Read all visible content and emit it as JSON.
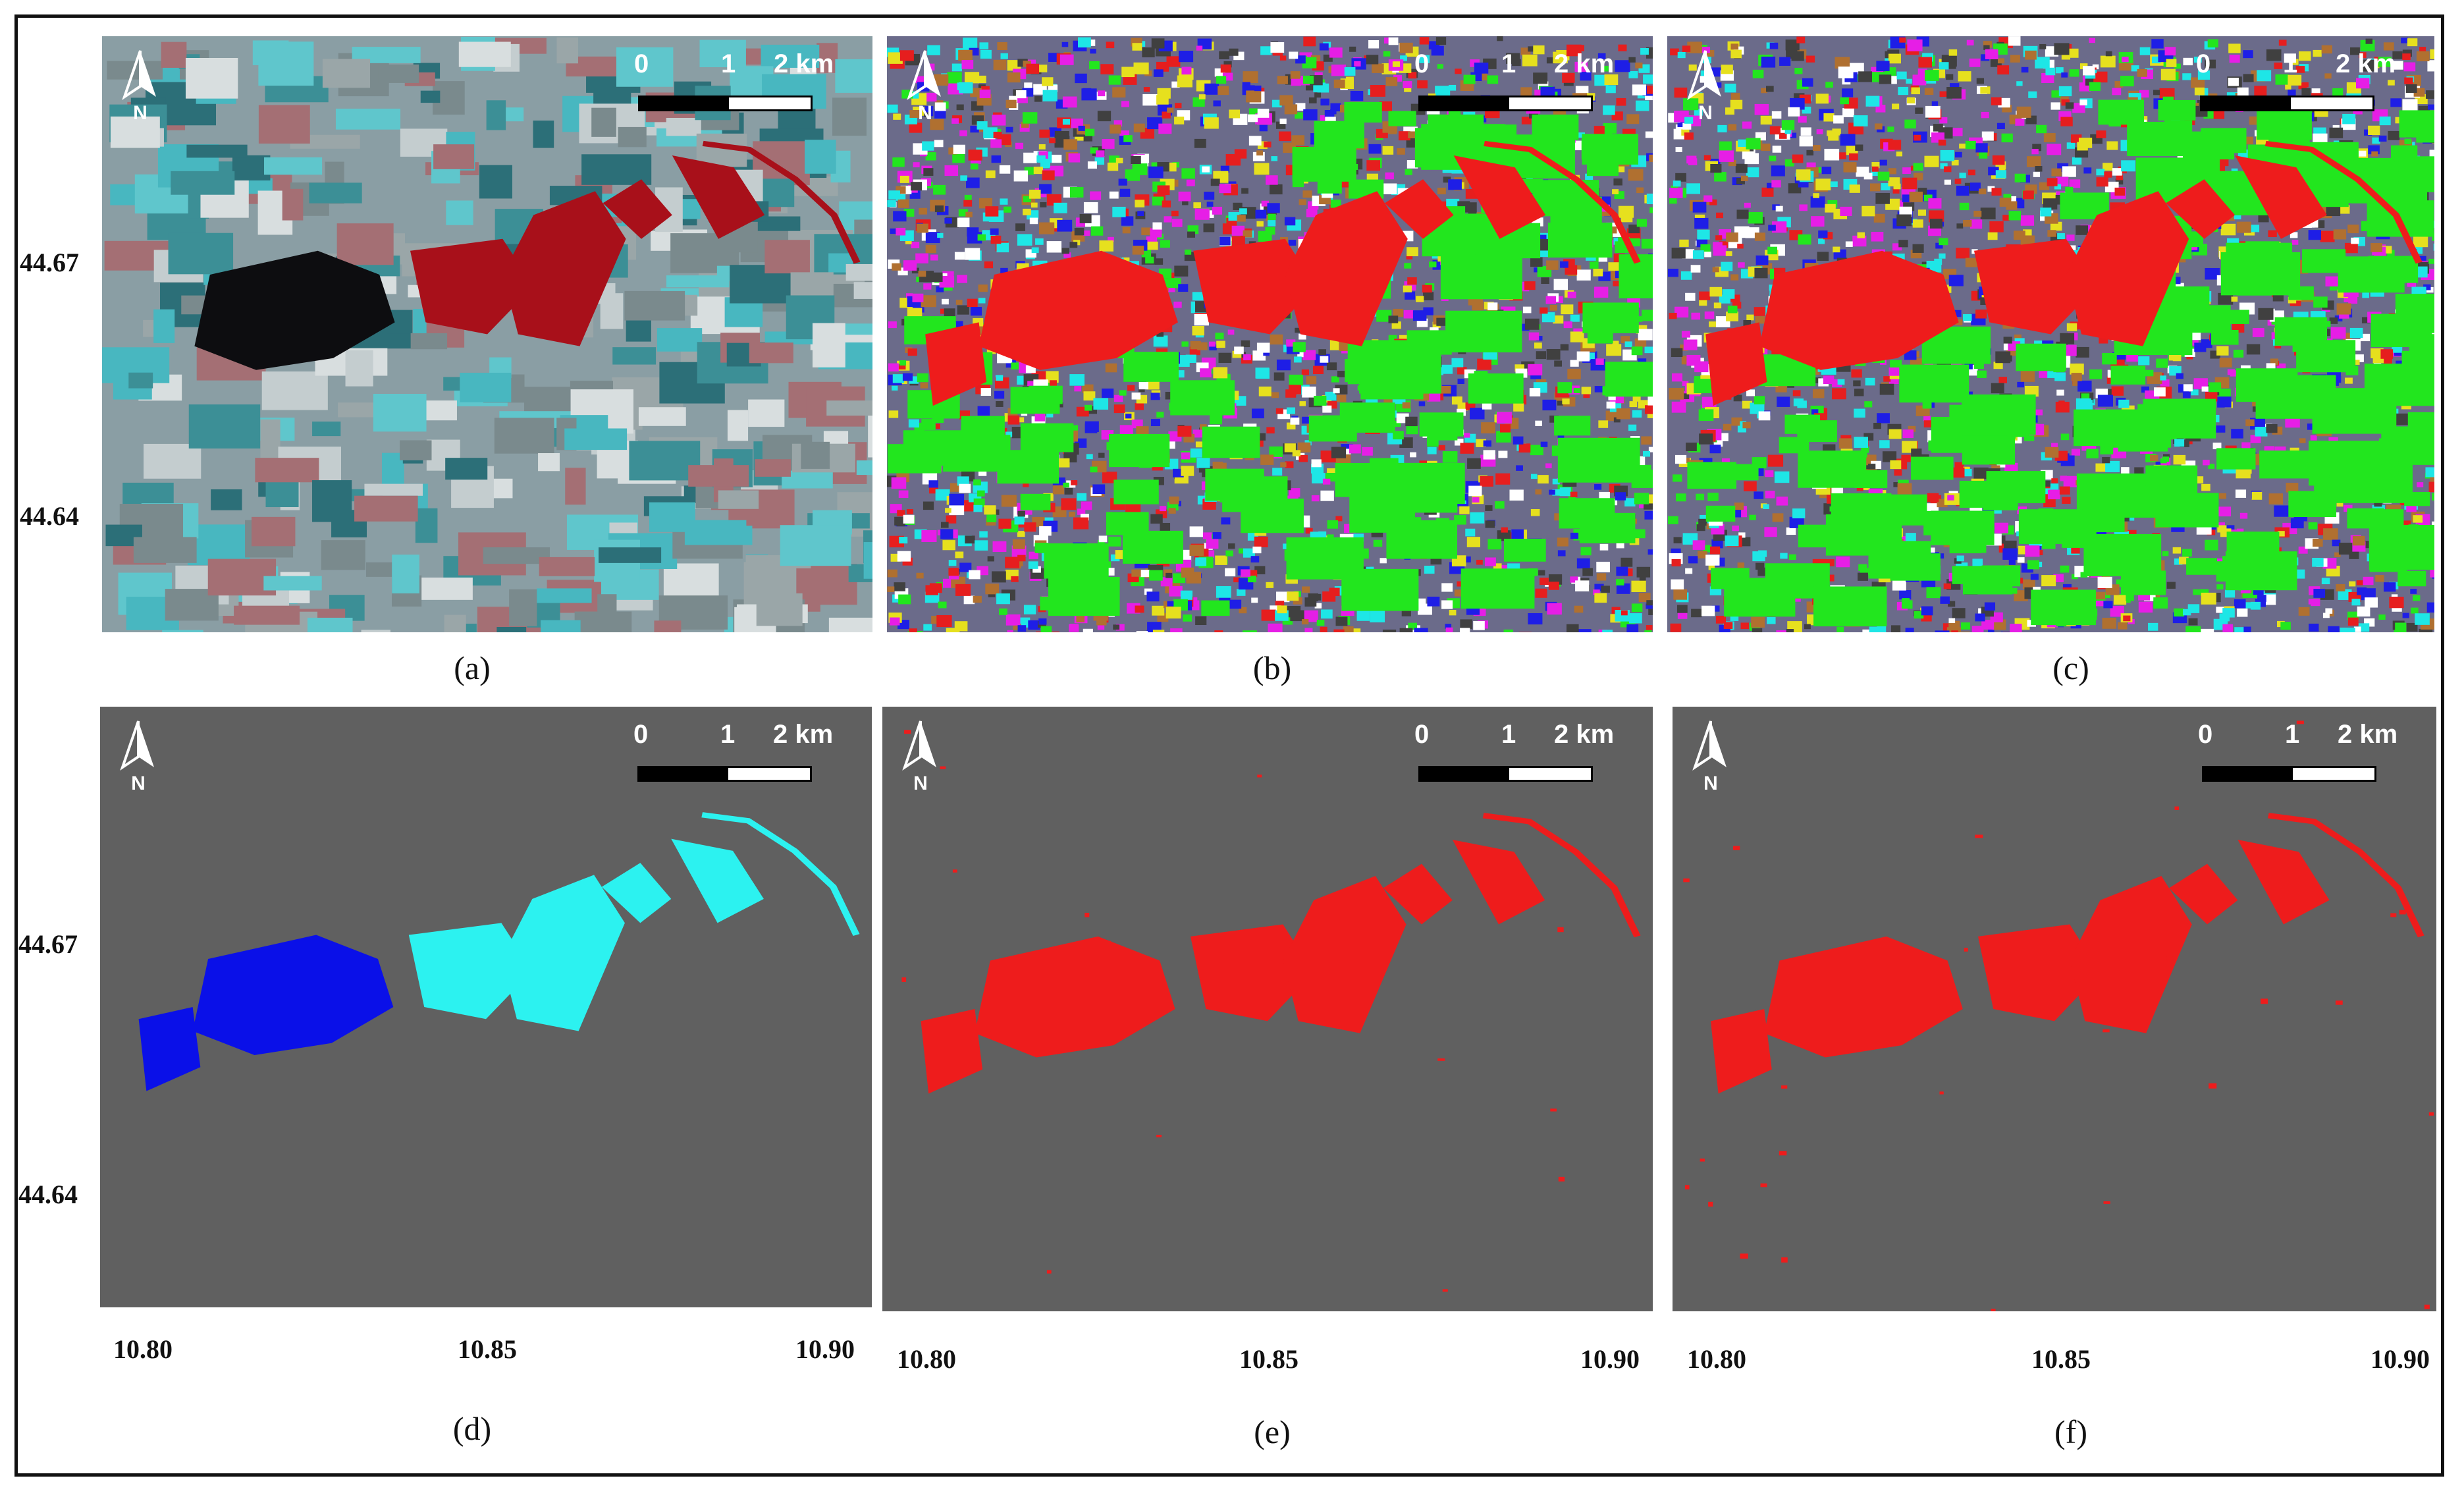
{
  "panels": [
    {
      "caption": "(a)",
      "type": "false-color composite"
    },
    {
      "caption": "(b)",
      "type": "noisy classification"
    },
    {
      "caption": "(c)",
      "type": "noisy classification"
    },
    {
      "caption": "(d)",
      "type": "flood mask two classes"
    },
    {
      "caption": "(e)",
      "type": "flood mask"
    },
    {
      "caption": "(f)",
      "type": "flood mask"
    }
  ],
  "north_label": "N",
  "scale_bar": {
    "ticks": [
      "0",
      "1",
      "2 km"
    ]
  },
  "lat_labels": [
    "44.67",
    "44.64"
  ],
  "lon_labels": [
    "10.80",
    "10.85",
    "10.90"
  ],
  "colors": {
    "background_gray": "#606060",
    "flood_red": "#ee1c1c",
    "flood_blue": "#0a10e8",
    "flood_cyan": "#2cf2f0",
    "class_green": "#22e61e",
    "sar_cyan": "#48b7c0",
    "sar_red": "#a8101a"
  }
}
